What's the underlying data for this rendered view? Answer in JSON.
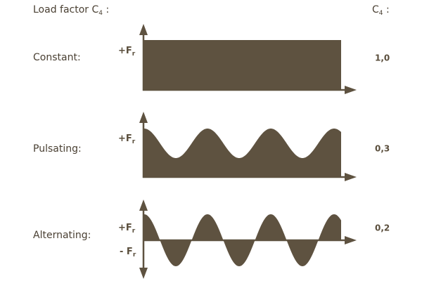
{
  "header": {
    "left": {
      "text": "Load factor C",
      "subscript": "4",
      "suffix": " :"
    },
    "right": {
      "text": "C",
      "subscript": "4",
      "suffix": " :"
    }
  },
  "rows": [
    {
      "label": "Constant:",
      "axis_labels": [
        {
          "symbol": "+F",
          "subscript": "r"
        }
      ],
      "value": "1,0"
    },
    {
      "label": "Pulsating:",
      "axis_labels": [
        {
          "symbol": "+F",
          "subscript": "r"
        }
      ],
      "value": "0,3"
    },
    {
      "label": "Alternating:",
      "axis_labels": [
        {
          "symbol": "+F",
          "subscript": "r"
        },
        {
          "symbol": "- F",
          "subscript": "r"
        }
      ],
      "value": "0,2"
    }
  ]
}
